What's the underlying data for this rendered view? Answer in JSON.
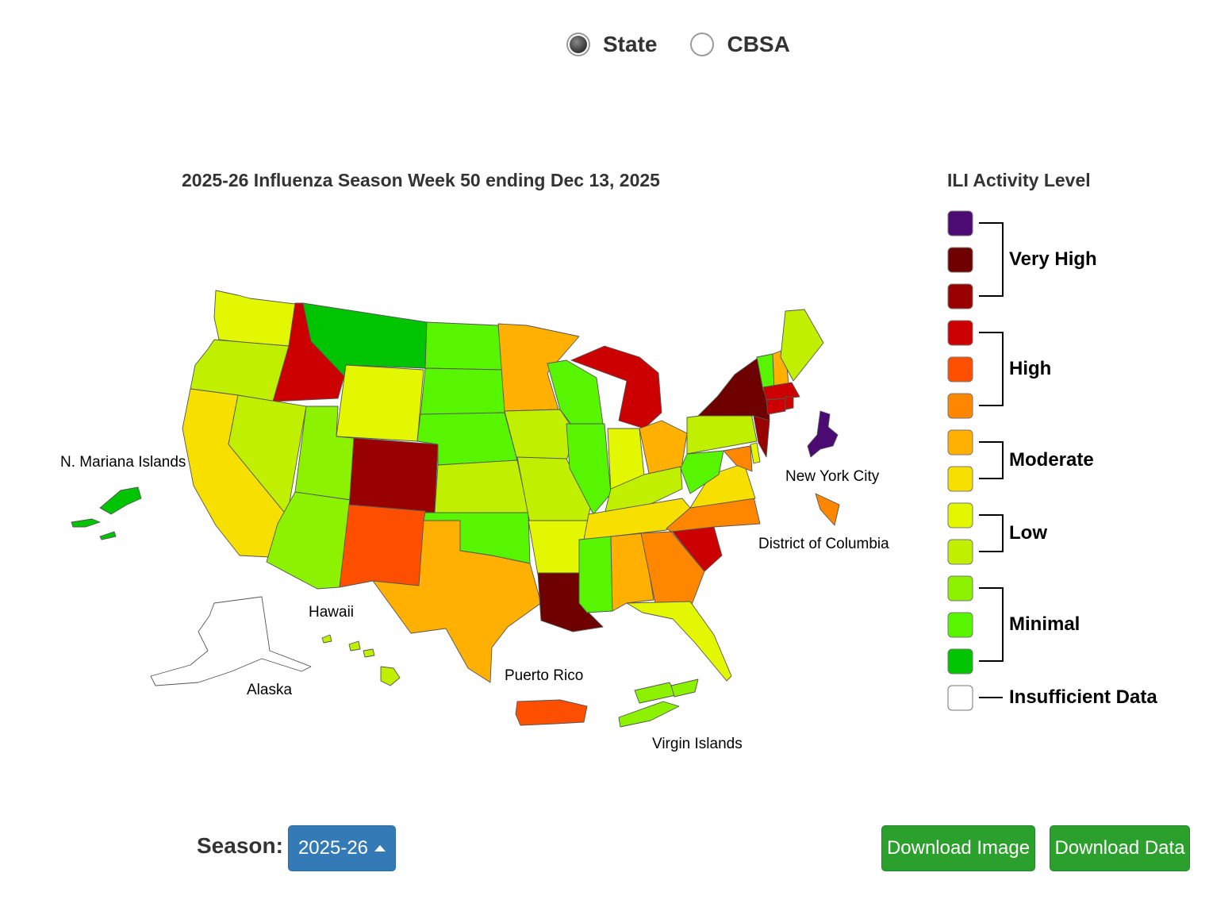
{
  "view_toggle": {
    "options": [
      {
        "label": "State",
        "selected": true
      },
      {
        "label": "CBSA",
        "selected": false
      }
    ]
  },
  "map": {
    "title": "2025-26 Influenza Season Week 50 ending Dec 13, 2025",
    "territory_labels": {
      "nmi": "N. Mariana Islands",
      "nyc": "New York City",
      "dc": "District of Columbia",
      "hawaii": "Hawaii",
      "alaska": "Alaska",
      "puerto_rico": "Puerto Rico",
      "virgin_islands": "Virgin Islands"
    },
    "level_colors": {
      "13": "#4b0b72",
      "12": "#6e0000",
      "11": "#990000",
      "10": "#cc0000",
      "9": "#fe4f00",
      "8": "#ff8700",
      "7": "#ffb000",
      "6": "#f7e000",
      "5": "#e3f700",
      "4": "#c0f000",
      "3": "#8cf200",
      "2": "#58f500",
      "1": "#00c400",
      "0": "#ffffff"
    },
    "state_levels": {
      "WA": 5,
      "OR": 4,
      "CA": 6,
      "ID": 10,
      "NV": 4,
      "MT": 1,
      "WY": 5,
      "UT": 3,
      "AZ": 3,
      "CO": 11,
      "NM": 9,
      "ND": 2,
      "SD": 2,
      "NE": 2,
      "KS": 4,
      "OK": 2,
      "TX": 7,
      "MN": 7,
      "IA": 4,
      "MO": 4,
      "AR": 5,
      "LA": 12,
      "WI": 2,
      "IL": 2,
      "MS": 2,
      "MI": 10,
      "IN": 5,
      "OH": 7,
      "KY": 4,
      "TN": 6,
      "AL": 7,
      "GA": 8,
      "FL": 5,
      "SC": 10,
      "NC": 8,
      "VA": 6,
      "WV": 2,
      "PA": 4,
      "NY": 12,
      "ME": 4,
      "VT": 2,
      "NH": 7,
      "MA": 10,
      "CT": 10,
      "RI": 10,
      "NJ": 11,
      "DE": 5,
      "MD": 8,
      "NYC": 13,
      "DC": 8,
      "AK": 0,
      "HI": 4,
      "PR": 9,
      "VI": 3,
      "MP": 1
    }
  },
  "legend": {
    "title": "ILI Activity Level",
    "swatch_levels": [
      13,
      12,
      11,
      10,
      9,
      8,
      7,
      6,
      5,
      4,
      3,
      2,
      1,
      0
    ],
    "groups": {
      "very_high": "Very High",
      "high": "High",
      "moderate": "Moderate",
      "low": "Low",
      "minimal": "Minimal",
      "insufficient": "Insufficient Data"
    }
  },
  "controls": {
    "season_label": "Season:",
    "season_value": "2025-26",
    "download_image": "Download Image",
    "download_data": "Download Data"
  }
}
